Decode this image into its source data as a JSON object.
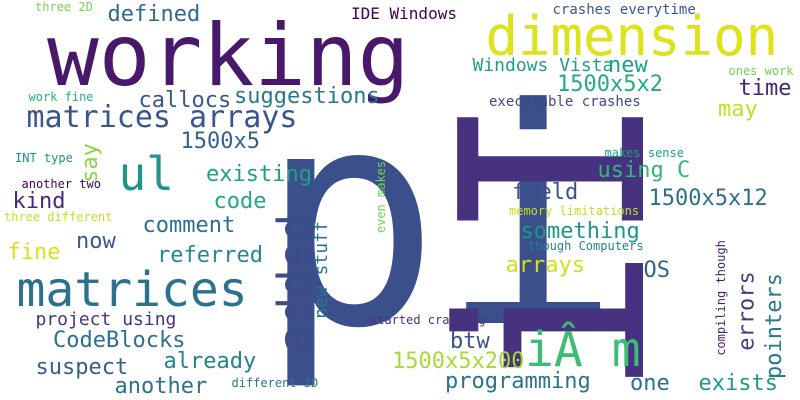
{
  "words": [
    {
      "text": "pi",
      "color": "#3b4f8a",
      "vertical": false
    },
    {
      "text": "iI",
      "color": "#46327e",
      "vertical": true
    },
    {
      "text": "working",
      "color": "#48186a",
      "vertical": false
    },
    {
      "text": "dimension",
      "color": "#dde318",
      "vertical": false
    },
    {
      "text": "matrices",
      "color": "#2c728e",
      "vertical": false
    },
    {
      "text": "added",
      "color": "#3e4c8a",
      "vertical": true
    },
    {
      "text": "iÂ m",
      "color": "#3dbc74",
      "vertical": false
    },
    {
      "text": "matrices arrays",
      "color": "#39558c",
      "vertical": false
    },
    {
      "text": "ul",
      "color": "#1f948c",
      "vertical": false
    },
    {
      "text": "callocs",
      "color": "#38588c",
      "vertical": false
    },
    {
      "text": "suggestions",
      "color": "#2a788e",
      "vertical": false
    },
    {
      "text": "1500x5x2",
      "color": "#25ab82",
      "vertical": false
    },
    {
      "text": "new",
      "color": "#1fa088",
      "vertical": false
    },
    {
      "text": "time",
      "color": "#482576",
      "vertical": false
    },
    {
      "text": "may",
      "color": "#c2df23",
      "vertical": false
    },
    {
      "text": "1500x5",
      "color": "#32648e",
      "vertical": false
    },
    {
      "text": "existing",
      "color": "#1fa187",
      "vertical": false
    },
    {
      "text": "say",
      "color": "#8bd646",
      "vertical": true
    },
    {
      "text": "kind",
      "color": "#482979",
      "vertical": false
    },
    {
      "text": "comment",
      "color": "#2e6e8e",
      "vertical": false
    },
    {
      "text": "code",
      "color": "#22a884",
      "vertical": false
    },
    {
      "text": "field",
      "color": "#3b528b",
      "vertical": false
    },
    {
      "text": "1500x5x12",
      "color": "#2d708e",
      "vertical": false
    },
    {
      "text": "something",
      "color": "#1f968b",
      "vertical": false
    },
    {
      "text": "using C",
      "color": "#35b779",
      "vertical": false
    },
    {
      "text": "errors",
      "color": "#433e85",
      "vertical": true
    },
    {
      "text": "pointers",
      "color": "#2a788e",
      "vertical": true
    },
    {
      "text": "fine",
      "color": "#d8e219",
      "vertical": false
    },
    {
      "text": "now",
      "color": "#38598c",
      "vertical": false
    },
    {
      "text": "referred",
      "color": "#23898e",
      "vertical": false
    },
    {
      "text": "arrays",
      "color": "#d0e11c",
      "vertical": false
    },
    {
      "text": "OS",
      "color": "#33638d",
      "vertical": false
    },
    {
      "text": "new stuff",
      "color": "#2b758e",
      "vertical": true
    },
    {
      "text": "project using",
      "color": "#453581",
      "vertical": false
    },
    {
      "text": "CodeBlocks",
      "color": "#2d718e",
      "vertical": false
    },
    {
      "text": "already",
      "color": "#26818e",
      "vertical": false
    },
    {
      "text": "suspect",
      "color": "#34608d",
      "vertical": false
    },
    {
      "text": "another",
      "color": "#2c728e",
      "vertical": false
    },
    {
      "text": "1500x5x200",
      "color": "#a5db36",
      "vertical": false
    },
    {
      "text": "btw",
      "color": "#3b528b",
      "vertical": false
    },
    {
      "text": "programming",
      "color": "#2c738e",
      "vertical": false
    },
    {
      "text": "one",
      "color": "#2c728e",
      "vertical": false
    },
    {
      "text": "exists",
      "color": "#1f9a8a",
      "vertical": false
    },
    {
      "text": "defined",
      "color": "#31688e",
      "vertical": false
    },
    {
      "text": "IDE Windows",
      "color": "#440154",
      "vertical": false
    },
    {
      "text": "crashes everytime",
      "color": "#38598c",
      "vertical": false
    },
    {
      "text": "Windows Vista",
      "color": "#1f9e89",
      "vertical": false
    },
    {
      "text": "executable crashes",
      "color": "#3f4788",
      "vertical": false
    },
    {
      "text": "ones work",
      "color": "#75d054",
      "vertical": false
    },
    {
      "text": "three 2D",
      "color": "#7ad151",
      "vertical": false
    },
    {
      "text": "work fine",
      "color": "#29af7f",
      "vertical": false
    },
    {
      "text": "INT type",
      "color": "#20928c",
      "vertical": false
    },
    {
      "text": "another two",
      "color": "#440154",
      "vertical": false
    },
    {
      "text": "three different",
      "color": "#c8e020",
      "vertical": false
    },
    {
      "text": "even makes",
      "color": "#73d056",
      "vertical": true
    },
    {
      "text": "two 1D",
      "color": "#3b528b",
      "vertical": true
    },
    {
      "text": "makes sense",
      "color": "#1fa088",
      "vertical": false
    },
    {
      "text": "memory limitations",
      "color": "#c0df25",
      "vertical": false
    },
    {
      "text": "though Computers",
      "color": "#27808e",
      "vertical": false
    },
    {
      "text": "compiling though",
      "color": "#482173",
      "vertical": true
    },
    {
      "text": "started crashing",
      "color": "#46327e",
      "vertical": false
    },
    {
      "text": "different 3D",
      "color": "#2a788e",
      "vertical": false
    }
  ]
}
